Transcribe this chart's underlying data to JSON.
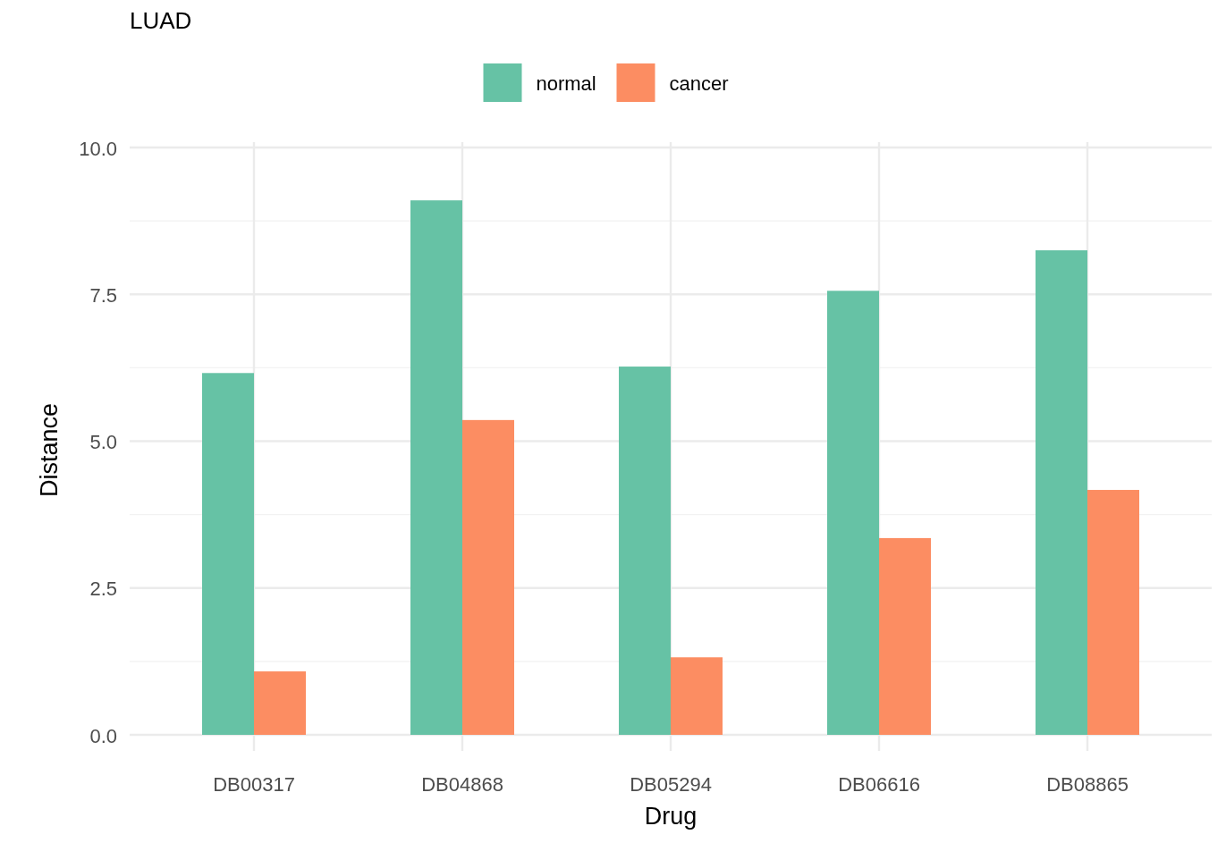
{
  "chart_data": {
    "type": "bar",
    "title": "LUAD",
    "xlabel": "Drug",
    "ylabel": "Distance",
    "categories": [
      "DB00317",
      "DB04868",
      "DB05294",
      "DB06616",
      "DB08865"
    ],
    "series": [
      {
        "name": "normal",
        "color": "#66c2a5",
        "values": [
          6.16,
          9.1,
          6.27,
          7.56,
          8.25
        ]
      },
      {
        "name": "cancer",
        "color": "#fc8d62",
        "values": [
          1.08,
          5.36,
          1.32,
          3.35,
          4.17
        ]
      }
    ],
    "ylim": [
      0,
      10
    ],
    "yticks": [
      {
        "value": 0,
        "label": "0.0"
      },
      {
        "value": 2.5,
        "label": "2.5"
      },
      {
        "value": 5,
        "label": "5.0"
      },
      {
        "value": 7.5,
        "label": "7.5"
      },
      {
        "value": 10,
        "label": "10.0"
      }
    ],
    "grid": true,
    "legend": "top"
  }
}
